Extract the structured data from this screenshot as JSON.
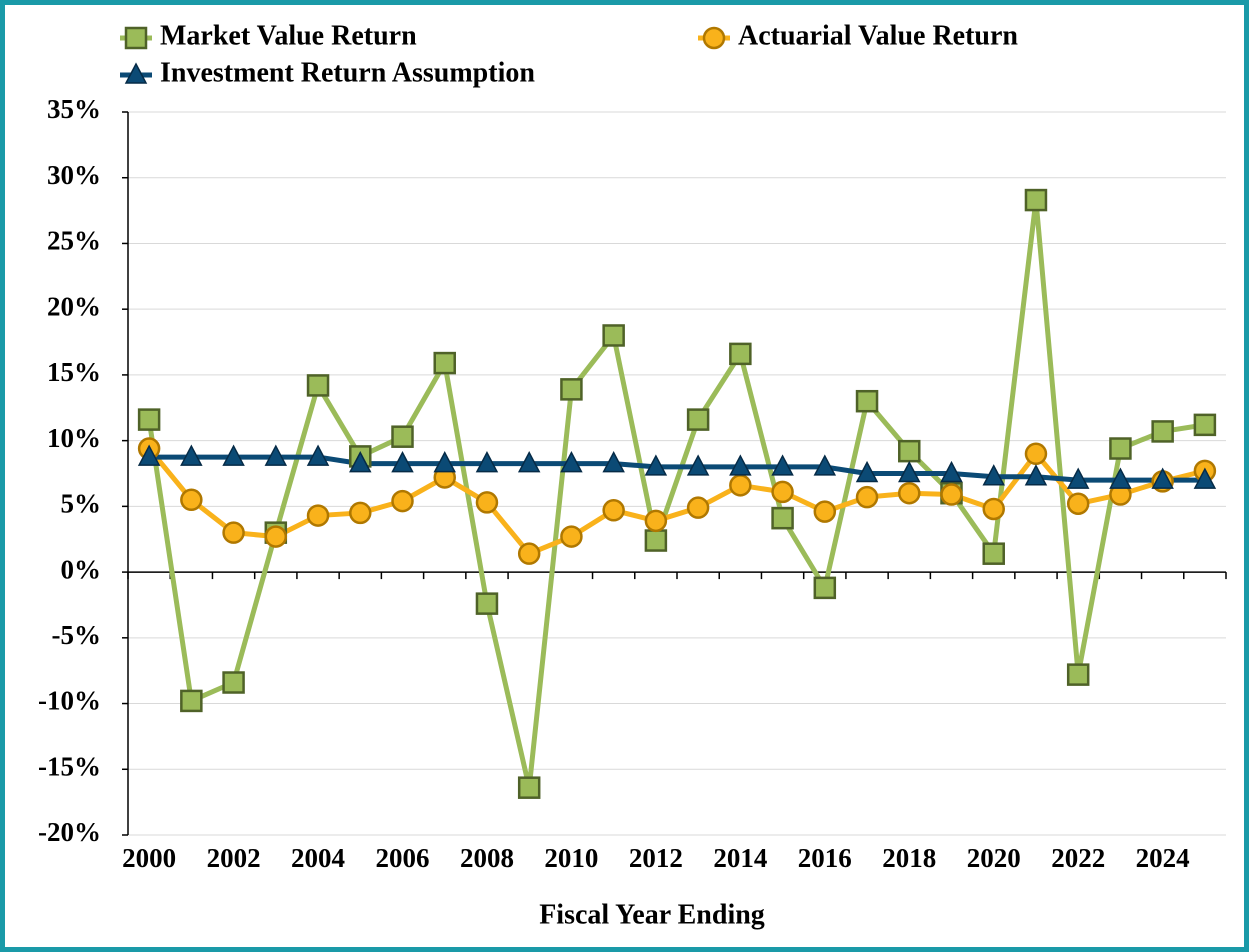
{
  "chart_data": {
    "type": "line",
    "x_label": "Fiscal Year Ending",
    "x": [
      2000,
      2001,
      2002,
      2003,
      2004,
      2005,
      2006,
      2007,
      2008,
      2009,
      2010,
      2011,
      2012,
      2013,
      2014,
      2015,
      2016,
      2017,
      2018,
      2019,
      2020,
      2021,
      2022,
      2023,
      2024,
      2025
    ],
    "xlim": [
      1999.5,
      2025.5
    ],
    "xticks": [
      2000,
      2002,
      2004,
      2006,
      2008,
      2010,
      2012,
      2014,
      2016,
      2018,
      2020,
      2022,
      2024
    ],
    "ylim": [
      -20,
      35
    ],
    "yticks": [
      {
        "value": -20,
        "label": "-20%"
      },
      {
        "value": -15,
        "label": "-15%"
      },
      {
        "value": -10,
        "label": "-10%"
      },
      {
        "value": -5,
        "label": "-5%"
      },
      {
        "value": 0,
        "label": "0%"
      },
      {
        "value": 5,
        "label": "5%"
      },
      {
        "value": 10,
        "label": "10%"
      },
      {
        "value": 15,
        "label": "15%"
      },
      {
        "value": 20,
        "label": "20%"
      },
      {
        "value": 25,
        "label": "25%"
      },
      {
        "value": 30,
        "label": "30%"
      },
      {
        "value": 35,
        "label": "35%"
      }
    ],
    "grid": true,
    "series": [
      {
        "name": "Market Value Return",
        "color": "#9bbb59",
        "marker": "square",
        "values": [
          11.6,
          -9.8,
          -8.4,
          3.0,
          14.2,
          8.8,
          10.3,
          15.9,
          -2.4,
          -16.4,
          13.9,
          18.0,
          2.4,
          11.6,
          16.6,
          4.1,
          -1.2,
          13.0,
          9.2,
          6.0,
          1.4,
          28.3,
          -7.8,
          9.4,
          10.7,
          11.2
        ]
      },
      {
        "name": "Actuarial Value Return",
        "color": "#f9b21b",
        "marker": "circle",
        "values": [
          9.4,
          5.5,
          3.0,
          2.7,
          4.3,
          4.5,
          5.4,
          7.2,
          5.3,
          1.4,
          2.7,
          4.7,
          3.9,
          4.9,
          6.6,
          6.1,
          4.6,
          5.7,
          6.0,
          5.9,
          4.8,
          9.0,
          5.2,
          5.9,
          6.9,
          7.7
        ]
      },
      {
        "name": "Investment Return Assumption",
        "color": "#0b4a75",
        "marker": "triangle",
        "values": [
          8.75,
          8.75,
          8.75,
          8.75,
          8.75,
          8.25,
          8.25,
          8.25,
          8.25,
          8.25,
          8.25,
          8.25,
          8.0,
          8.0,
          8.0,
          8.0,
          8.0,
          7.5,
          7.5,
          7.5,
          7.25,
          7.25,
          7.0,
          7.0,
          7.0,
          7.0
        ]
      }
    ]
  }
}
